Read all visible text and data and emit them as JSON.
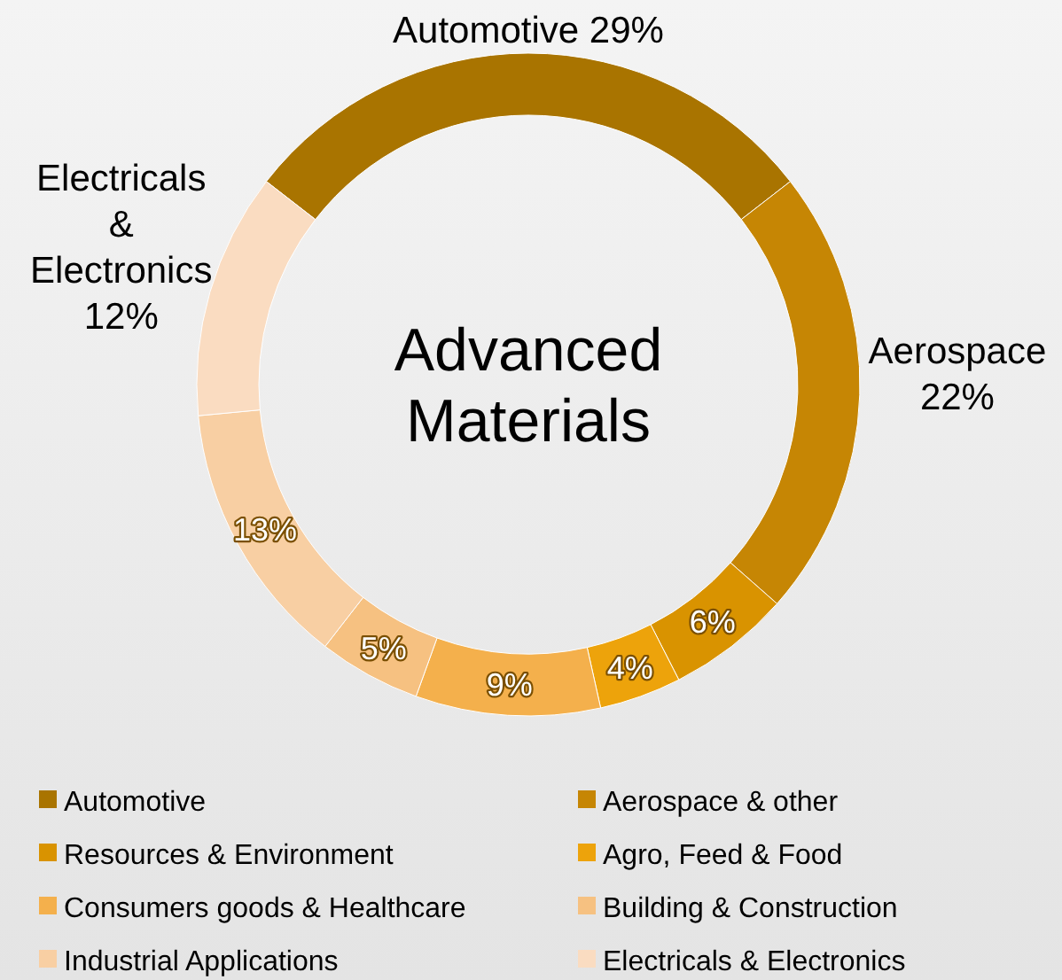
{
  "chart_data": {
    "type": "donut",
    "title": "Advanced Materials",
    "categories": [
      "Automotive",
      "Aerospace & other",
      "Resources & Environment",
      "Agro, Feed & Food",
      "Consumers goods & Healthcare",
      "Building & Construction",
      "Industrial Applications",
      "Electricals & Electronics"
    ],
    "values": [
      29,
      22,
      6,
      4,
      9,
      5,
      13,
      12
    ],
    "colors": [
      "#a97400",
      "#c68604",
      "#d99300",
      "#eda30b",
      "#f4b04c",
      "#f6c181",
      "#f8cfa3",
      "#fadcc1"
    ],
    "value_labels": [
      "Automotive 29%",
      "Aerospace\n22%",
      "6%",
      "4%",
      "9%",
      "5%",
      "13%",
      "Electricals\n&\nElectronics\n12%"
    ],
    "legend": "bottom"
  }
}
